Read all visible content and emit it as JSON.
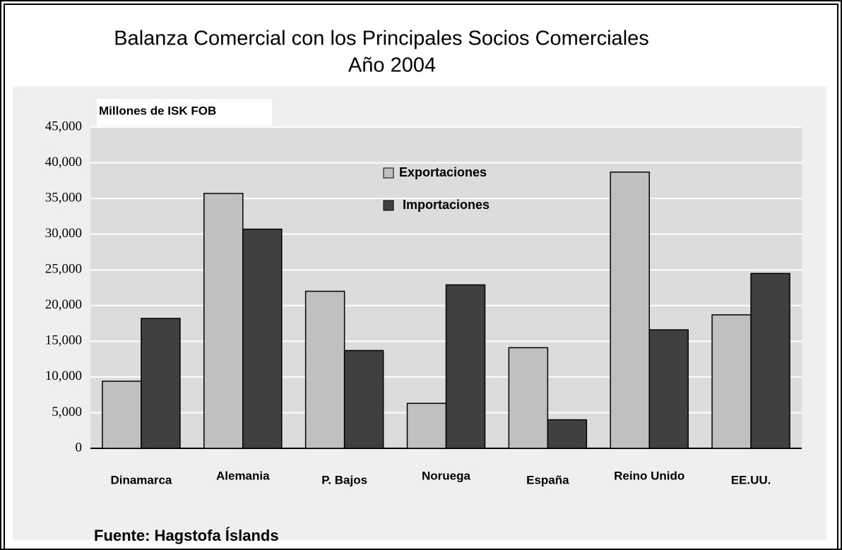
{
  "chart_data": {
    "type": "bar",
    "title": "Balanza Comercial con los Principales Socios Comerciales",
    "subtitle": "Año 2004",
    "y_label": "Millones de ISK FOB",
    "source": "Fuente: Hagstofa Íslands",
    "categories": [
      "Dinamarca",
      "Alemania",
      "P. Bajos",
      "Noruega",
      "España",
      "Reino Unido",
      "EE.UU."
    ],
    "series": [
      {
        "name": "Exportaciones",
        "color": "#c0c0c0",
        "values": [
          9400,
          35700,
          22000,
          6300,
          14100,
          38700,
          18700
        ]
      },
      {
        "name": "Importaciones",
        "color": "#404040",
        "values": [
          18200,
          30700,
          13700,
          22900,
          4000,
          16600,
          24500
        ]
      }
    ],
    "ylim": [
      0,
      45000
    ],
    "yticks": [
      0,
      {
        "value": 5000,
        "label": "5,000"
      },
      {
        "value": 10000,
        "label": "10,000"
      },
      {
        "value": 15000,
        "label": "15,000"
      },
      {
        "value": 20000,
        "label": "20,000"
      },
      {
        "value": 25000,
        "label": "25,000"
      },
      {
        "value": 30000,
        "label": "30,000"
      },
      {
        "value": 35000,
        "label": "35,000"
      },
      {
        "value": 40000,
        "label": "40,000"
      },
      {
        "value": 45000,
        "label": "45,000"
      }
    ],
    "grid": true
  }
}
